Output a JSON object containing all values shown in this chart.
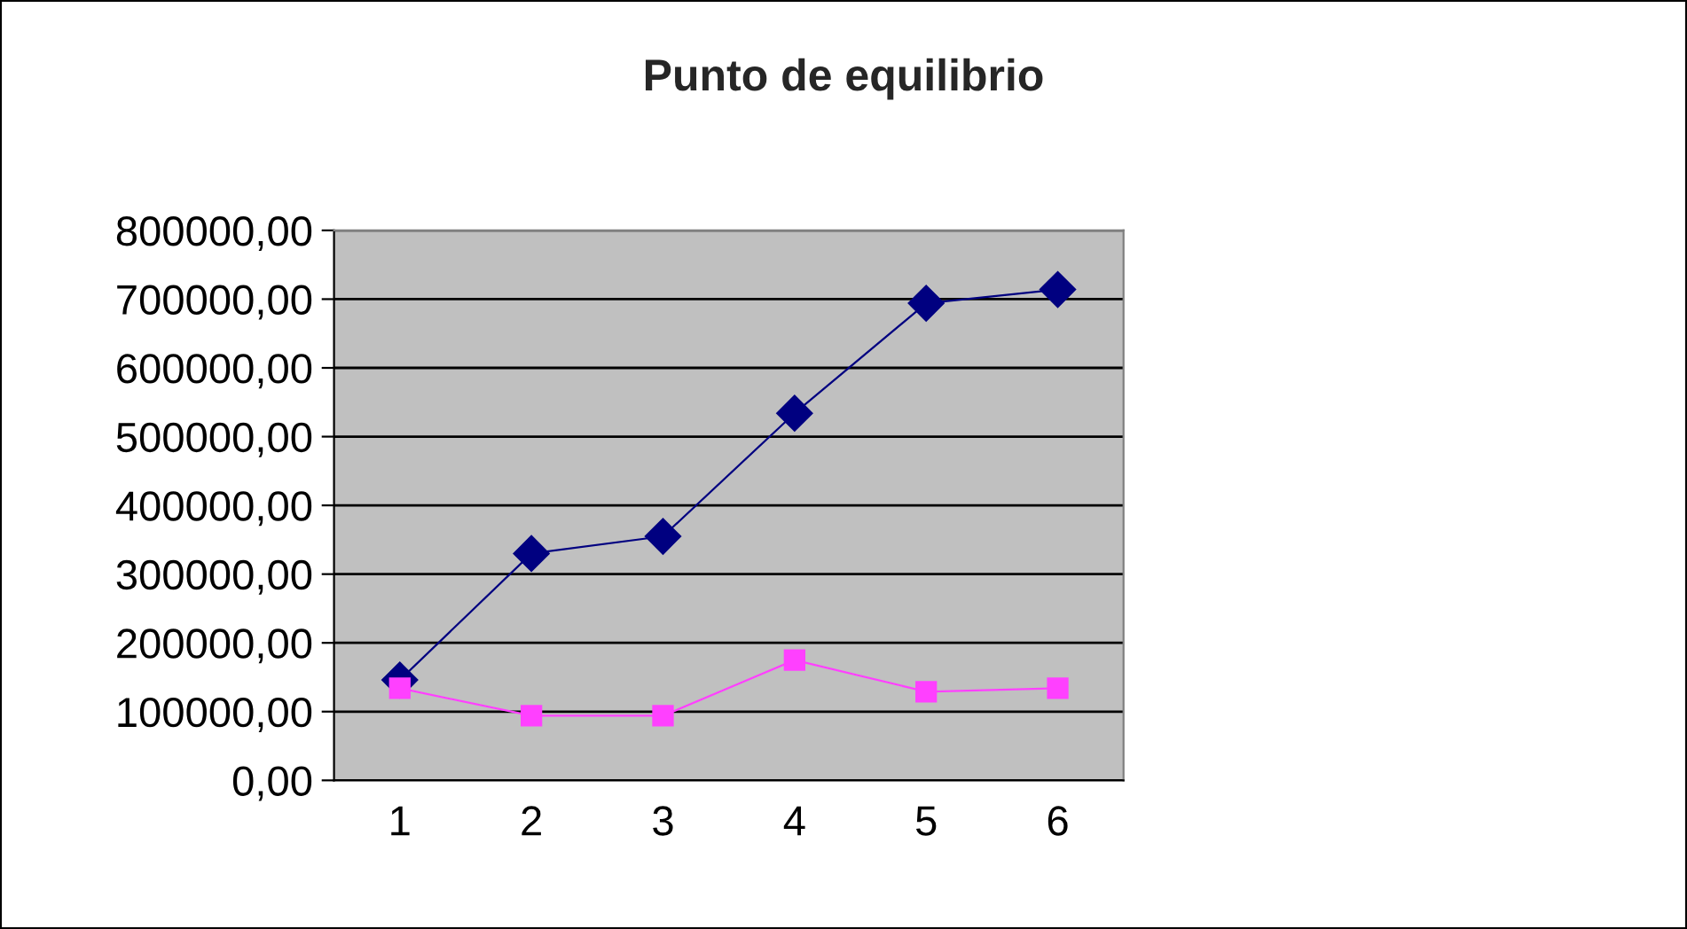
{
  "chart_data": {
    "type": "line",
    "title": "Punto de equilibrio",
    "categories": [
      "1",
      "2",
      "3",
      "4",
      "5",
      "6"
    ],
    "series": [
      {
        "color": "#000080",
        "marker": "diamond",
        "values": [
          146000,
          330000,
          355000,
          534000,
          694000,
          714000
        ]
      },
      {
        "color": "#ff40ff",
        "marker": "square",
        "values": [
          134000,
          94000,
          94000,
          175000,
          129000,
          134000
        ]
      }
    ],
    "ylim": [
      0,
      800000
    ],
    "yticks": [
      {
        "value": 0,
        "label": "0,00"
      },
      {
        "value": 100000,
        "label": "100000,00"
      },
      {
        "value": 200000,
        "label": "200000,00"
      },
      {
        "value": 300000,
        "label": "300000,00"
      },
      {
        "value": 400000,
        "label": "400000,00"
      },
      {
        "value": 500000,
        "label": "500000,00"
      },
      {
        "value": 600000,
        "label": "600000,00"
      },
      {
        "value": 700000,
        "label": "700000,00"
      },
      {
        "value": 800000,
        "label": "800000,00"
      }
    ],
    "grid": "y"
  }
}
